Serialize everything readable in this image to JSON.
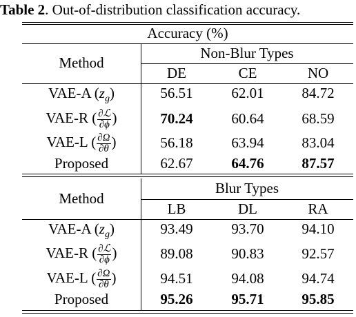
{
  "caption": {
    "label": "Table 2",
    "text": ". Out-of-distribution classification accuracy."
  },
  "table": {
    "super_header": "Accuracy (%)",
    "sections": [
      {
        "method_header": "Method",
        "group_header": "Non-Blur Types",
        "columns": [
          "DE",
          "CE",
          "NO"
        ],
        "rows": [
          {
            "method_prefix": "VAE-A (",
            "method_math": "z",
            "method_sub": "g",
            "method_suffix": ")",
            "values": [
              "56.51",
              "62.01",
              "84.72"
            ],
            "bold": [
              false,
              false,
              false
            ]
          },
          {
            "method_prefix": "VAE-R (",
            "frac_num": "∂ℒ",
            "frac_den": "∂ϕ",
            "method_suffix": ")",
            "values": [
              "70.24",
              "60.64",
              "68.59"
            ],
            "bold": [
              true,
              false,
              false
            ]
          },
          {
            "method_prefix": "VAE-L (",
            "frac_num": "∂Ω",
            "frac_den": "∂θ",
            "method_suffix": ")",
            "values": [
              "56.18",
              "63.94",
              "83.04"
            ],
            "bold": [
              false,
              false,
              false
            ]
          },
          {
            "method_text": "Proposed",
            "values": [
              "62.67",
              "64.76",
              "87.57"
            ],
            "bold": [
              false,
              true,
              true
            ]
          }
        ]
      },
      {
        "method_header": "Method",
        "group_header": "Blur Types",
        "columns": [
          "LB",
          "DL",
          "RA"
        ],
        "rows": [
          {
            "method_prefix": "VAE-A (",
            "method_math": "z",
            "method_sub": "g",
            "method_suffix": ")",
            "values": [
              "93.49",
              "93.70",
              "94.10"
            ],
            "bold": [
              false,
              false,
              false
            ]
          },
          {
            "method_prefix": "VAE-R (",
            "frac_num": "∂ℒ",
            "frac_den": "∂ϕ",
            "method_suffix": ")",
            "values": [
              "89.08",
              "90.83",
              "92.57"
            ],
            "bold": [
              false,
              false,
              false
            ]
          },
          {
            "method_prefix": "VAE-L (",
            "frac_num": "∂Ω",
            "frac_den": "∂θ",
            "method_suffix": ")",
            "values": [
              "94.51",
              "94.08",
              "94.74"
            ],
            "bold": [
              false,
              false,
              false
            ]
          },
          {
            "method_text": "Proposed",
            "values": [
              "95.26",
              "95.71",
              "95.85"
            ],
            "bold": [
              true,
              true,
              true
            ]
          }
        ]
      }
    ]
  }
}
